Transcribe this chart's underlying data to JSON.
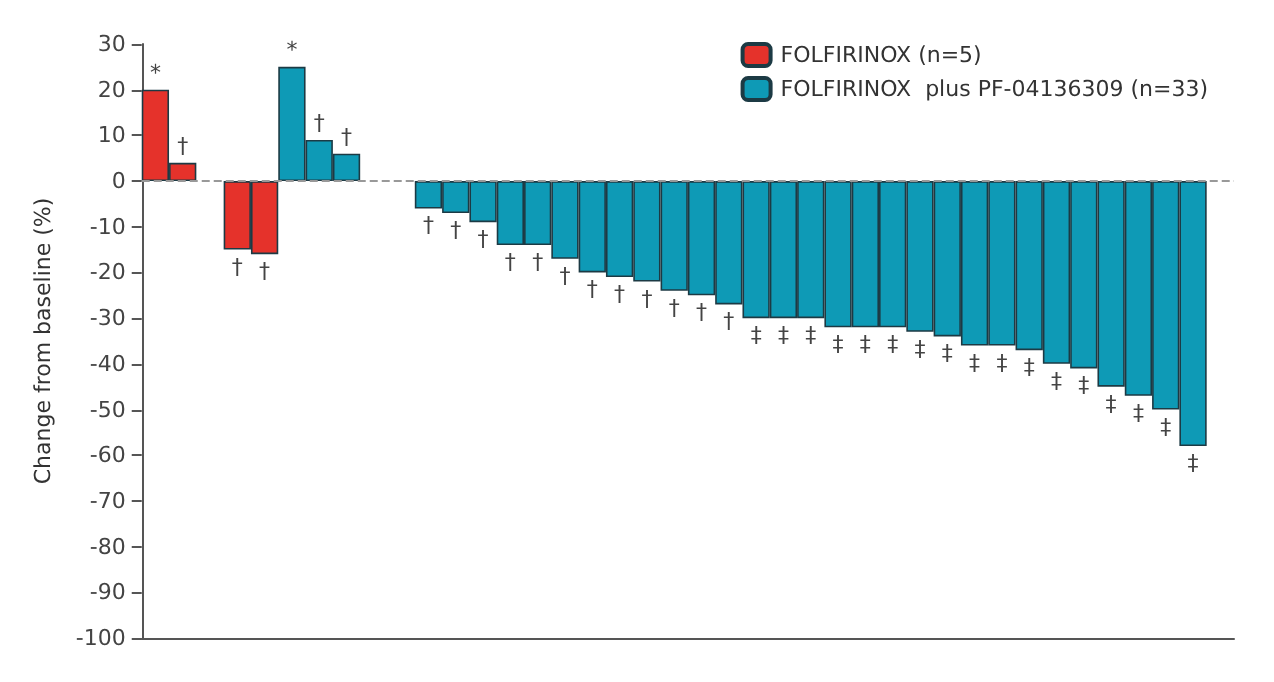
{
  "chart_data": {
    "type": "bar",
    "ylabel": "Change from baseline (%)",
    "categories": [
      null,
      null,
      null,
      null,
      null,
      null,
      null,
      null,
      null,
      null,
      null,
      null,
      null,
      null,
      null,
      null,
      null,
      null,
      null,
      null,
      null,
      null,
      null,
      null,
      null,
      null,
      null,
      null,
      null,
      null,
      null,
      null,
      null,
      null,
      null,
      null,
      null,
      null,
      null,
      null
    ],
    "series": [
      {
        "name": "FOLFIRINOX (n=5)",
        "color": "#e5322b",
        "values": [
          20,
          4,
          null,
          -15,
          -16,
          null,
          null,
          null,
          null,
          null,
          null,
          null,
          null,
          null,
          null,
          null,
          null,
          null,
          null,
          null,
          null,
          null,
          null,
          null,
          null,
          null,
          null,
          null,
          null,
          null,
          null,
          null,
          null,
          null,
          null,
          null,
          null,
          null,
          null,
          null
        ],
        "value_labels": [
          "*",
          "†",
          null,
          "†",
          "†",
          null,
          null,
          null,
          null,
          null,
          null,
          null,
          null,
          null,
          null,
          null,
          null,
          null,
          null,
          null,
          null,
          null,
          null,
          null,
          null,
          null,
          null,
          null,
          null,
          null,
          null,
          null,
          null,
          null,
          null,
          null,
          null,
          null,
          null,
          null
        ]
      },
      {
        "name": "FOLFIRINOX  plus PF-04136309 (n=33)",
        "color": "#0e9ab6",
        "values": [
          null,
          null,
          null,
          null,
          null,
          25,
          9,
          6,
          null,
          null,
          -6,
          -7,
          -9,
          -14,
          -14,
          -17,
          -20,
          -21,
          -22,
          -24,
          -25,
          -27,
          -30,
          -30,
          -30,
          -32,
          -32,
          -32,
          -33,
          -34,
          -36,
          -36,
          -37,
          -40,
          -41,
          -45,
          -47,
          -50,
          -58,
          null
        ],
        "value_labels": [
          null,
          null,
          null,
          null,
          null,
          "*",
          "†",
          "†",
          null,
          null,
          "†",
          "†",
          "†",
          "†",
          "†",
          "†",
          "†",
          "†",
          "†",
          "†",
          "†",
          "†",
          "‡",
          "‡",
          "‡",
          "‡",
          "‡",
          "‡",
          "‡",
          "‡",
          "‡",
          "‡",
          "‡",
          "‡",
          "‡",
          "‡",
          "‡",
          "‡",
          "‡",
          null
        ]
      }
    ],
    "ylim": [
      -100,
      30
    ],
    "yticks": [
      30,
      20,
      10,
      0,
      -10,
      -20,
      -30,
      -40,
      -50,
      -60,
      -70,
      -80,
      -90,
      -100
    ],
    "ref_lines": [
      {
        "axis": "y",
        "value": 0,
        "color": "#999999",
        "line_style": "dashed"
      }
    ],
    "grid": false,
    "legend": "top right"
  }
}
